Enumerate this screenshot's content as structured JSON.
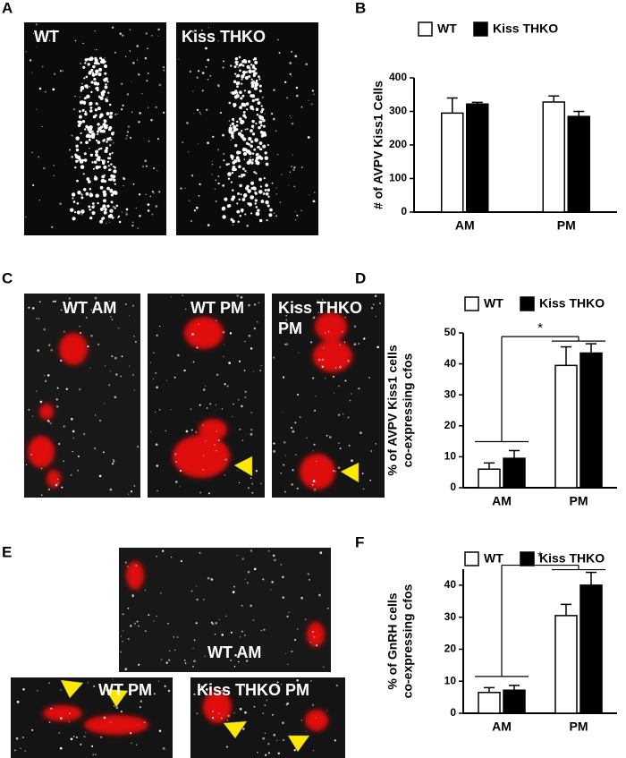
{
  "panel_letters": [
    "A",
    "B",
    "C",
    "D",
    "E",
    "F"
  ],
  "image_labels": {
    "A": [
      "WT",
      "Kiss THKO"
    ],
    "C": [
      "WT AM",
      "WT PM",
      "Kiss THKO",
      "PM"
    ],
    "E": [
      "WT AM",
      "WT PM",
      "Kiss THKO PM"
    ]
  },
  "chart_data": [
    {
      "type": "bar",
      "ylabel": "# of AVPV Kiss1 Cells",
      "categories": [
        "AM",
        "PM"
      ],
      "series": [
        {
          "name": "WT",
          "color": "#ffffff",
          "values": [
            295,
            328
          ],
          "errors": [
            45,
            18
          ]
        },
        {
          "name": "Kiss THKO",
          "color": "#000000",
          "values": [
            322,
            285
          ],
          "errors": [
            5,
            15
          ]
        }
      ],
      "ylim": [
        0,
        400
      ],
      "yticks": [
        0,
        100,
        200,
        300,
        400
      ]
    },
    {
      "type": "bar",
      "ylabel": [
        "% of AVPV Kiss1 cells",
        "co-expressing cfos"
      ],
      "categories": [
        "AM",
        "PM"
      ],
      "series": [
        {
          "name": "WT",
          "color": "#ffffff",
          "values": [
            6,
            39.5
          ],
          "errors": [
            2,
            6
          ]
        },
        {
          "name": "Kiss THKO",
          "color": "#000000",
          "values": [
            9.5,
            43.5
          ],
          "errors": [
            2.5,
            3
          ]
        }
      ],
      "ylim": [
        0,
        50
      ],
      "yticks": [
        0,
        10,
        20,
        30,
        40,
        50
      ],
      "annotation": "*"
    },
    {
      "type": "bar",
      "ylabel": [
        "% of GnRH cells",
        "co-expressing cfos"
      ],
      "categories": [
        "AM",
        "PM"
      ],
      "series": [
        {
          "name": "WT",
          "color": "#ffffff",
          "values": [
            6.5,
            30.5
          ],
          "errors": [
            1.5,
            3.5
          ]
        },
        {
          "name": "Kiss THKO",
          "color": "#000000",
          "values": [
            7.2,
            40
          ],
          "errors": [
            1.5,
            4
          ]
        }
      ],
      "ylim": [
        0,
        45
      ],
      "yticks": [
        0,
        10,
        20,
        30,
        40
      ],
      "annotation": "*"
    }
  ]
}
